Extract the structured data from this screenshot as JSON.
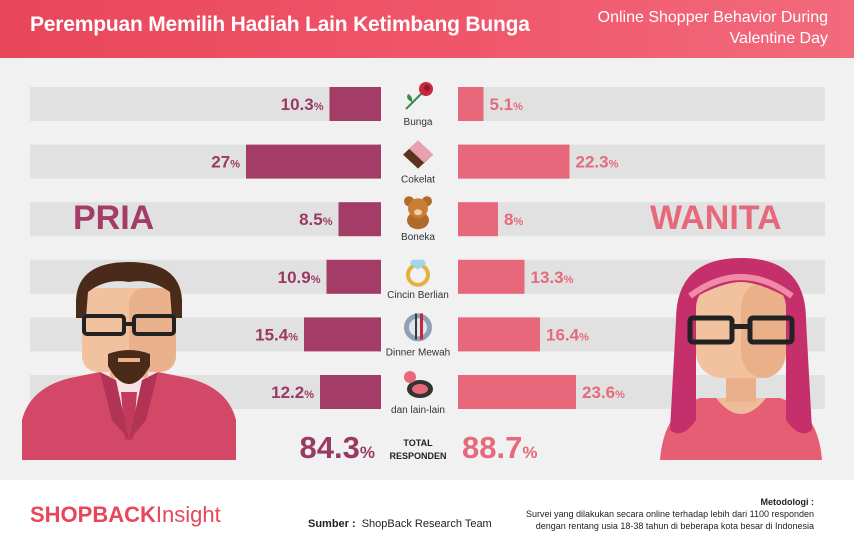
{
  "header": {
    "title": "Perempuan Memilih Hadiah Lain Ketimbang Bunga",
    "subtitle": "Online Shopper Behavior During Valentine Day"
  },
  "groups": {
    "left": "PRIA",
    "right": "WANITA"
  },
  "colors": {
    "left": "#a33c66",
    "right": "#e8687b",
    "header": "#e8465a"
  },
  "chart_data": {
    "type": "bar",
    "orientation": "horizontal-butterfly",
    "categories": [
      "Bunga",
      "Cokelat",
      "Boneka",
      "Cincin Berlian",
      "Dinner Mewah",
      "dan lain-lain"
    ],
    "icons": [
      "rose-icon",
      "chocolate-icon",
      "teddy-bear-icon",
      "diamond-ring-icon",
      "dinner-icon",
      "makeup-icon"
    ],
    "series": [
      {
        "name": "PRIA",
        "values": [
          10.3,
          27,
          8.5,
          10.9,
          15.4,
          12.2
        ],
        "labels": [
          "10.3",
          "27",
          "8.5",
          "10.9",
          "15.4",
          "12.2"
        ]
      },
      {
        "name": "WANITA",
        "values": [
          5.1,
          22.3,
          8,
          13.3,
          16.4,
          23.6
        ],
        "labels": [
          "5.1",
          "22.3",
          "8",
          "13.3",
          "16.4",
          "23.6"
        ]
      }
    ],
    "unit": "%",
    "xlim": [
      0,
      100
    ],
    "totals": {
      "label_line1": "TOTAL",
      "label_line2": "RESPONDEN",
      "left": "84.3",
      "right": "88.7"
    }
  },
  "footer": {
    "brand_main": "SHOPBACK",
    "brand_sub": "Insight",
    "source_label": "Sumber :",
    "source_value": "ShopBack Research Team",
    "method_title": "Metodologi :",
    "method_line1": "Survei yang dilakukan secara online terhadap lebih dari 1100 responden",
    "method_line2": "dengan rentang usia 18-38 tahun di beberapa kota besar di Indonesia"
  }
}
